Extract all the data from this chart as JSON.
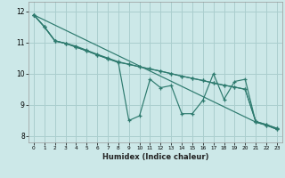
{
  "xlabel": "Humidex (Indice chaleur)",
  "bg_color": "#cce8e8",
  "grid_color": "#aacece",
  "line_color": "#2d7a6e",
  "xlim": [
    -0.5,
    23.5
  ],
  "ylim": [
    7.8,
    12.3
  ],
  "xticks": [
    0,
    1,
    2,
    3,
    4,
    5,
    6,
    7,
    8,
    9,
    10,
    11,
    12,
    13,
    14,
    15,
    16,
    17,
    18,
    19,
    20,
    21,
    22,
    23
  ],
  "yticks": [
    8,
    9,
    10,
    11,
    12
  ],
  "series": [
    [
      11.88,
      null,
      null,
      null,
      null,
      null,
      null,
      null,
      null,
      null,
      null,
      null,
      null,
      null,
      null,
      null,
      null,
      null,
      null,
      null,
      null,
      8.45,
      8.35,
      8.22
    ],
    [
      11.88,
      11.5,
      11.05,
      10.97,
      10.88,
      10.75,
      10.62,
      10.5,
      10.38,
      10.3,
      10.22,
      10.15,
      10.08,
      10.0,
      9.92,
      9.85,
      9.78,
      9.7,
      9.63,
      9.57,
      9.5,
      8.47,
      8.37,
      8.25
    ],
    [
      11.88,
      11.5,
      11.05,
      10.97,
      10.85,
      10.73,
      10.6,
      10.48,
      10.36,
      8.5,
      8.65,
      9.82,
      9.55,
      9.62,
      8.72,
      8.72,
      9.15,
      10.0,
      9.18,
      9.75,
      9.82,
      8.45,
      8.35,
      8.22
    ],
    [
      11.88,
      11.5,
      11.05,
      10.97,
      10.85,
      10.73,
      10.6,
      10.48,
      10.36,
      10.3,
      10.22,
      10.15,
      10.08,
      10.0,
      9.92,
      9.85,
      9.78,
      9.7,
      9.63,
      9.57,
      9.5,
      8.47,
      8.37,
      8.25
    ]
  ]
}
